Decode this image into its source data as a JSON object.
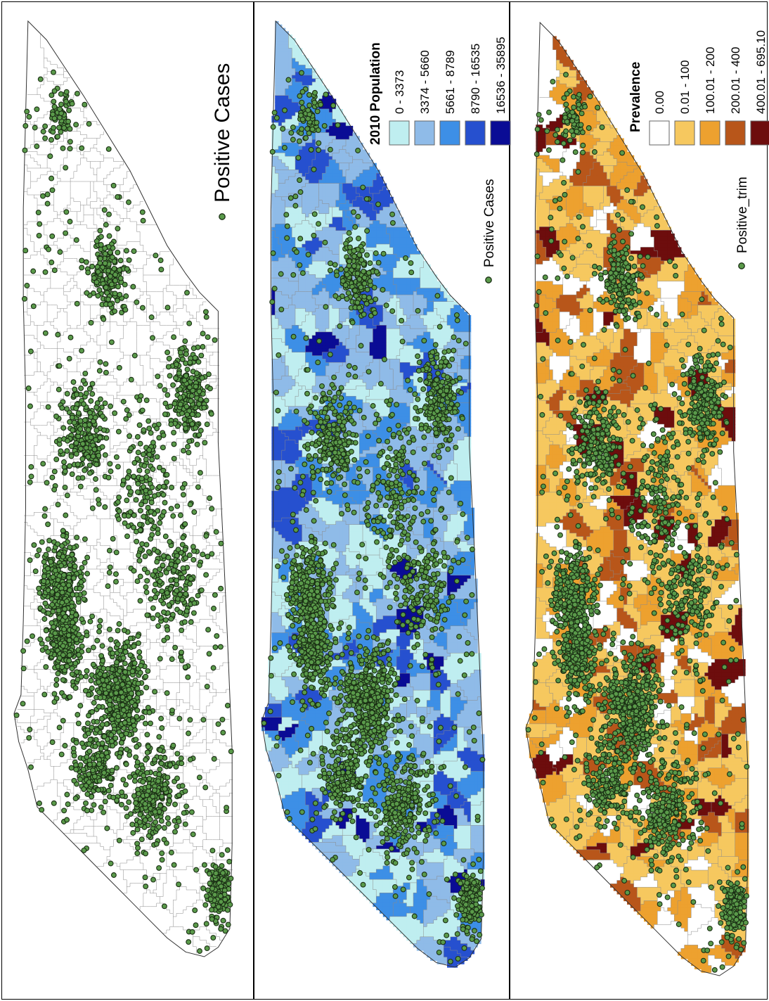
{
  "panels": [
    {
      "id": "cases",
      "legend": {
        "layers": [
          {
            "label": "Positive Cases",
            "symbol": "point"
          }
        ]
      },
      "fill_scheme": "none"
    },
    {
      "id": "population",
      "legend": {
        "title": "2010 Population",
        "classes": [
          {
            "label": "0 - 3373",
            "color": "#bfeef0"
          },
          {
            "label": "3374 - 5660",
            "color": "#8fbbe8"
          },
          {
            "label": "5661 - 8789",
            "color": "#3d8fe6"
          },
          {
            "label": "8790 - 16535",
            "color": "#2650cf"
          },
          {
            "label": "16536 - 35895",
            "color": "#0a0c95"
          }
        ],
        "layers": [
          {
            "label": "Positive Cases",
            "symbol": "point"
          }
        ]
      },
      "fill_scheme": "population"
    },
    {
      "id": "prevalence",
      "legend": {
        "title": "Prevalence",
        "classes": [
          {
            "label": "0.00",
            "color": "#ffffff"
          },
          {
            "label": "0.01 - 100",
            "color": "#f6c85f"
          },
          {
            "label": "100.01 - 200",
            "color": "#eda12f"
          },
          {
            "label": "200.01 - 400",
            "color": "#b8561a"
          },
          {
            "label": "400.01 - 695.10",
            "color": "#6d0d0d"
          }
        ],
        "layers": [
          {
            "label": "Positive_trim",
            "symbol": "point"
          }
        ]
      },
      "fill_scheme": "prevalence"
    }
  ],
  "colors": {
    "point_fill": "#5a9a4a",
    "point_stroke": "#1a2e14",
    "boundary": "#8a8a8a",
    "outline": "#333333"
  }
}
